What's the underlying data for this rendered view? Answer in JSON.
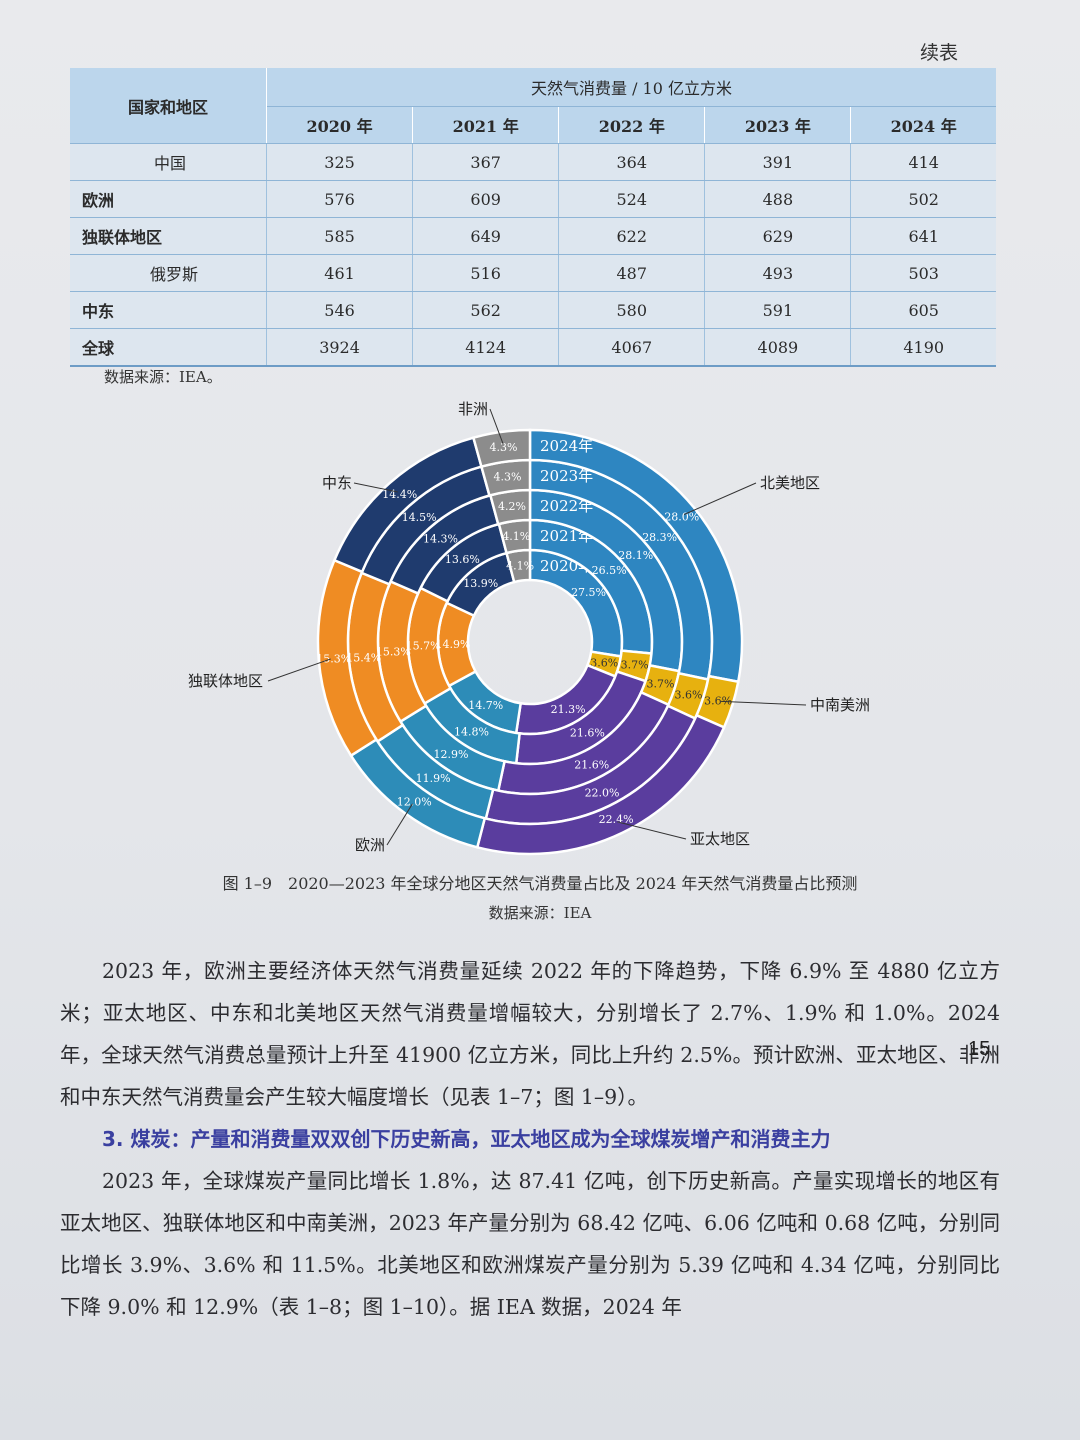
{
  "header": {
    "continued": "续表"
  },
  "table": {
    "corner": "国家和地区",
    "unit_header": "天然气消费量 / 10 亿立方米",
    "years": [
      "2020 年",
      "2021 年",
      "2022 年",
      "2023 年",
      "2024 年"
    ],
    "rows": [
      {
        "name": "中国",
        "values": [
          "325",
          "367",
          "364",
          "391",
          "414"
        ]
      },
      {
        "name": "欧洲",
        "values": [
          "576",
          "609",
          "524",
          "488",
          "502"
        ]
      },
      {
        "name": "独联体地区",
        "values": [
          "585",
          "649",
          "622",
          "629",
          "641"
        ]
      },
      {
        "name": "俄罗斯",
        "values": [
          "461",
          "516",
          "487",
          "493",
          "503"
        ]
      },
      {
        "name": "中东",
        "values": [
          "546",
          "562",
          "580",
          "591",
          "605"
        ]
      },
      {
        "name": "全球",
        "values": [
          "3924",
          "4124",
          "4067",
          "4089",
          "4190"
        ]
      }
    ],
    "source": "数据来源：IEA。"
  },
  "chart_data": {
    "type": "pie",
    "style": "concentric-donut",
    "rings": [
      "2020年",
      "2021年",
      "2022年",
      "2023年",
      "2024年"
    ],
    "series": [
      {
        "name": "北美地区",
        "color": "#2e86c1",
        "values": [
          27.5,
          26.5,
          28.1,
          28.3,
          28.0
        ]
      },
      {
        "name": "中南美洲",
        "color": "#e7b10f",
        "values": [
          3.6,
          3.7,
          3.7,
          3.6,
          3.6
        ]
      },
      {
        "name": "亚太地区",
        "color": "#5a3d9e",
        "values": [
          21.3,
          21.6,
          21.6,
          22.0,
          22.4
        ]
      },
      {
        "name": "欧洲",
        "color": "#2d8cb8",
        "values": [
          14.7,
          14.8,
          12.9,
          11.9,
          12.0
        ]
      },
      {
        "name": "独联体地区",
        "color": "#ef8c23",
        "values": [
          14.9,
          15.7,
          15.3,
          15.4,
          15.3
        ]
      },
      {
        "name": "中东",
        "color": "#1f3b6e",
        "values": [
          13.9,
          13.6,
          14.3,
          14.5,
          14.4
        ]
      },
      {
        "name": "非洲",
        "color": "#8c8c8c",
        "values": [
          4.1,
          4.1,
          4.2,
          4.3,
          4.3
        ]
      }
    ]
  },
  "figure": {
    "caption": "图 1–9　2020—2023 年全球分地区天然气消费量占比及 2024 年天然气消费量占比预测",
    "source": "数据来源：IEA"
  },
  "body": {
    "para1": "2023 年，欧洲主要经济体天然气消费量延续 2022 年的下降趋势，下降 6.9% 至 4880 亿立方米；亚太地区、中东和北美地区天然气消费量增幅较大，分别增长了 2.7%、1.9% 和 1.0%。2024 年，全球天然气消费总量预计上升至 41900 亿立方米，同比上升约 2.5%。预计欧洲、亚太地区、非洲和中东天然气消费量会产生较大幅度增长（见表 1–7；图 1–9）。",
    "heading": "3. 煤炭：产量和消费量双双创下历史新高，亚太地区成为全球煤炭增产和消费主力",
    "para2": "2023 年，全球煤炭产量同比增长 1.8%，达 87.41 亿吨，创下历史新高。产量实现增长的地区有亚太地区、独联体地区和中南美洲，2023 年产量分别为 68.42 亿吨、6.06 亿吨和 0.68 亿吨，分别同比增长 3.9%、3.6% 和 11.5%。北美地区和欧洲煤炭产量分别为 5.39 亿吨和 4.34 亿吨，分别同比下降 9.0% 和 12.9%（表 1–8；图 1–10）。据 IEA 数据，2024 年"
  },
  "page_number": "15"
}
